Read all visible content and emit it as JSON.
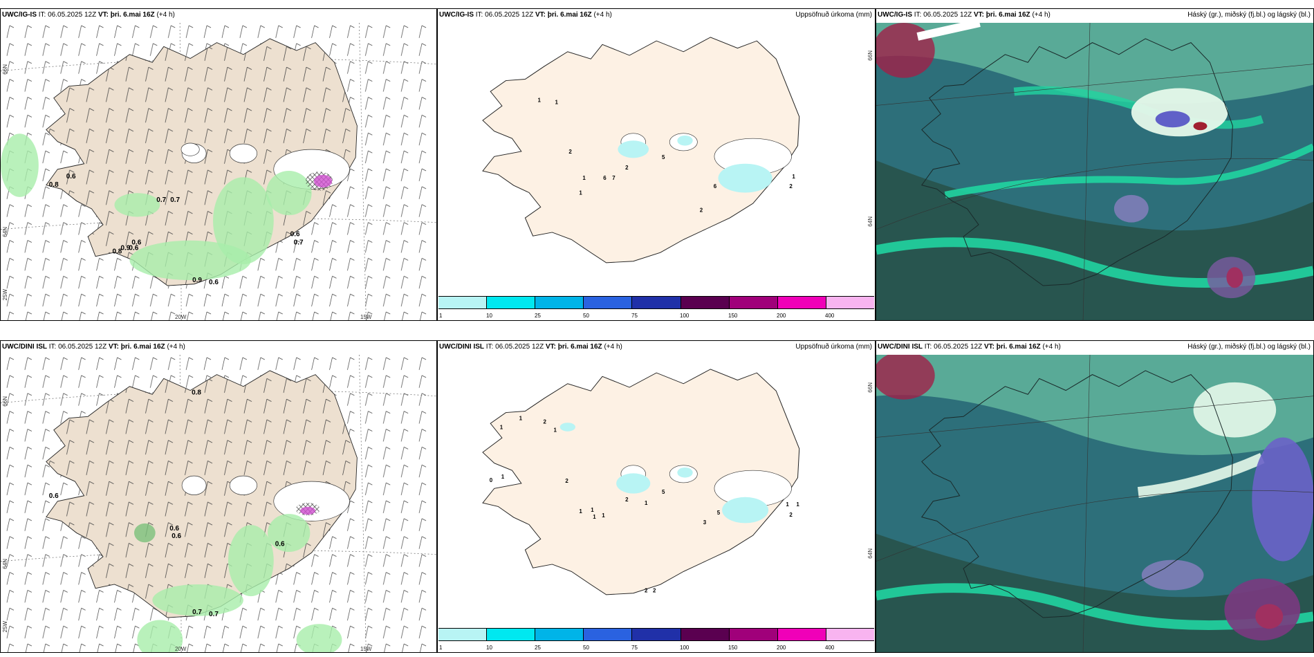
{
  "rows": [
    {
      "model": "UWC/IG-IS",
      "wind_panel": {
        "header_model": "UWC/IG-IS",
        "it_label": "IT:",
        "it_value": "06.05.2025 12Z",
        "vt_label": "VT:",
        "vt_value": "þri. 6.mai 16Z",
        "lead": "(+4 h)",
        "values": [
          "0.6",
          "0.8",
          "0.7",
          "0.7",
          "0.6",
          "0.8",
          "0.9",
          "0.6",
          "0.9",
          "0.6",
          "0.6",
          "0.7"
        ]
      },
      "precip_panel": {
        "header_model": "UWC/IG-IS",
        "it_label": "IT:",
        "it_value": "06.05.2025 12Z",
        "vt_label": "VT:",
        "vt_value": "þri. 6.mai 16Z",
        "lead": "(+4 h)",
        "right_title": "Uppsöfnuð úrkoma (mm)",
        "values": [
          "1",
          "1",
          "2",
          "1",
          "6",
          "7",
          "2",
          "1",
          "5",
          "6",
          "1",
          "2",
          "2"
        ]
      },
      "cloud_panel": {
        "header_model": "UWC/IG-IS",
        "it_label": "IT:",
        "it_value": "06.05.2025 12Z",
        "vt_label": "VT:",
        "vt_value": "þri. 6.mai 16Z",
        "lead": "(+4 h)",
        "right_title": "Háský (gr.), miðský (fj.bl.) og lágský (bl.)"
      }
    },
    {
      "model": "UWC/DINI ISL",
      "wind_panel": {
        "header_model": "UWC/DINI ISL",
        "it_label": "IT:",
        "it_value": "06.05.2025 12Z",
        "vt_label": "VT:",
        "vt_value": "þri. 6.mai 16Z",
        "lead": "(+4 h)",
        "values": [
          "0.8",
          "0.6",
          "0.6",
          "0.6",
          "0.6",
          "0.7",
          "0.7"
        ]
      },
      "precip_panel": {
        "header_model": "UWC/DINI ISL",
        "it_label": "IT:",
        "it_value": "06.05.2025 12Z",
        "vt_label": "VT:",
        "vt_value": "þri. 6.mai 16Z",
        "lead": "(+4 h)",
        "right_title": "Uppsöfnuð úrkoma (mm)",
        "values": [
          "1",
          "1",
          "2",
          "1",
          "0",
          "1",
          "2",
          "1",
          "1",
          "1",
          "1",
          "2",
          "5",
          "1",
          "5",
          "3",
          "1",
          "1",
          "2",
          "2",
          "2"
        ]
      },
      "cloud_panel": {
        "header_model": "UWC/DINI ISL",
        "it_label": "IT:",
        "it_value": "06.05.2025 12Z",
        "vt_label": "VT:",
        "vt_value": "þri. 6.mai 16Z",
        "lead": "(+4 h)",
        "right_title": "Háský (gr.), miðský (fj.bl.) og lágský (bl.)"
      }
    }
  ],
  "axis_labels": {
    "lat_66": "66N",
    "lat_64": "64N",
    "lon_25": "25W",
    "lon_20": "20W",
    "lon_15": "15W"
  },
  "colorbar": {
    "ticks": [
      "1",
      "10",
      "25",
      "50",
      "75",
      "100",
      "150",
      "200",
      "400"
    ],
    "colors": [
      "#b8f4f4",
      "#00e8f0",
      "#00b4e8",
      "#2a62e0",
      "#2030a8",
      "#5a0050",
      "#a0007a",
      "#f000b8",
      "#f8b4f0"
    ]
  },
  "colors": {
    "land": "#ede0d0",
    "land_precip": "#fdf1e4",
    "glacier": "#ffffff",
    "rain": "#a8eeaa",
    "cloud_dark": "#28554f",
    "cloud_mid": "#2d6f7a",
    "cloud_light": "#5eb09a",
    "cloud_green": "#20d4a0"
  }
}
